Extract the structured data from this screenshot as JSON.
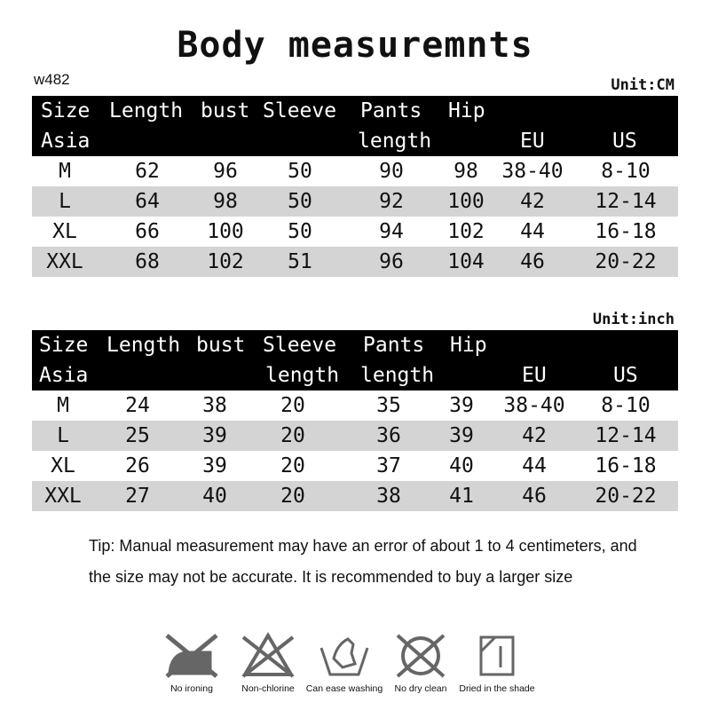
{
  "title": "Body measuremnts",
  "code": "w482",
  "tables": [
    {
      "unit": "Unit:CM",
      "headers": [
        [
          "Size",
          "Asia"
        ],
        [
          "Length",
          ""
        ],
        [
          "bust",
          ""
        ],
        [
          "Sleeve",
          ""
        ],
        [
          "Pants",
          "length"
        ],
        [
          "Hip",
          ""
        ],
        [
          "",
          "EU"
        ],
        [
          "",
          "US"
        ]
      ],
      "rows": [
        [
          "M",
          "62",
          "96",
          "50",
          "90",
          "98",
          "38-40",
          "8-10"
        ],
        [
          "L",
          "64",
          "98",
          "50",
          "92",
          "100",
          "42",
          "12-14"
        ],
        [
          "XL",
          "66",
          "100",
          "50",
          "94",
          "102",
          "44",
          "16-18"
        ],
        [
          "XXL",
          "68",
          "102",
          "51",
          "96",
          "104",
          "46",
          "20-22"
        ]
      ]
    },
    {
      "unit": "Unit:inch",
      "headers": [
        [
          "Size",
          "Asia"
        ],
        [
          "Length",
          ""
        ],
        [
          "bust",
          ""
        ],
        [
          "Sleeve",
          "length"
        ],
        [
          "Pants",
          "length"
        ],
        [
          "Hip",
          ""
        ],
        [
          "",
          "EU"
        ],
        [
          "",
          "US"
        ]
      ],
      "rows": [
        [
          "M",
          "24",
          "38",
          "20",
          "35",
          "39",
          "38-40",
          "8-10"
        ],
        [
          "L",
          "25",
          "39",
          "20",
          "36",
          "39",
          "42",
          "12-14"
        ],
        [
          "XL",
          "26",
          "39",
          "20",
          "37",
          "40",
          "44",
          "16-18"
        ],
        [
          "XXL",
          "27",
          "40",
          "20",
          "38",
          "41",
          "46",
          "20-22"
        ]
      ]
    }
  ],
  "tip": "Tip: Manual measurement may have an error of about 1 to 4 centimeters, and the size may not be accurate. It is recommended to buy a larger size",
  "care": [
    {
      "icon": "no-ironing-icon",
      "label": "No ironing"
    },
    {
      "icon": "non-chlorine-icon",
      "label": "Non-chlorine"
    },
    {
      "icon": "hand-wash-icon",
      "label": "Can ease washing"
    },
    {
      "icon": "no-dry-clean-icon",
      "label": "No dry clean"
    },
    {
      "icon": "dry-in-shade-icon",
      "label": "Dried in the shade"
    }
  ],
  "colors": {
    "header_bg": "#000000",
    "stripe": "#d4d4d4",
    "icon": "#666666"
  }
}
